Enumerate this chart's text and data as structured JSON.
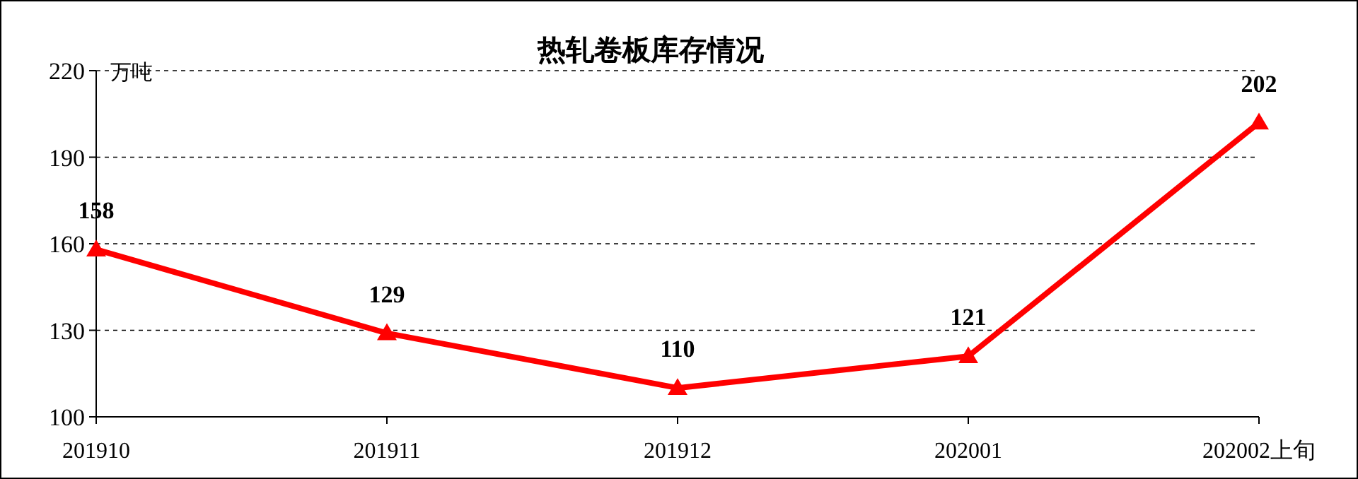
{
  "chart_data": {
    "type": "line",
    "title": "热轧卷板库存情况",
    "ylabel": "万吨",
    "categories": [
      "201910",
      "201911",
      "201912",
      "202001",
      "202002上旬"
    ],
    "series": [
      {
        "color": "#ff0000",
        "values": [
          158,
          129,
          110,
          121,
          202
        ]
      }
    ],
    "ylim": [
      100,
      220
    ],
    "yticks": [
      100,
      130,
      160,
      190,
      220
    ],
    "grid": "y",
    "marker": "triangle",
    "line_style": "solid",
    "data_labels": true
  }
}
